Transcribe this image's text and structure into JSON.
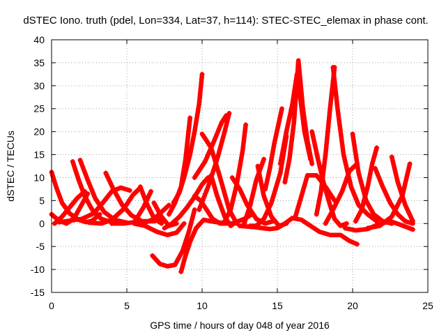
{
  "chart_data": {
    "type": "line",
    "title": "dSTEC Iono. truth (pdel, Lon=334, Lat=37, h=114): STEC-STEC_elemax in phase cont.",
    "xlabel": "GPS time / hours of day 048 of year 2016",
    "ylabel": "dSTEC  / TECUs",
    "xlim": [
      0,
      25
    ],
    "ylim": [
      -15,
      40
    ],
    "xticks": [
      "0",
      "5",
      "10",
      "15",
      "20",
      "25"
    ],
    "yticks": [
      "-15",
      "-10",
      "-5",
      "0",
      "5",
      "10",
      "15",
      "20",
      "25",
      "30",
      "35",
      "40"
    ],
    "grid": true,
    "color": "#ff0000",
    "marker": "plus",
    "series": [
      {
        "x": [
          0.0,
          0.3,
          0.7,
          1.2,
          1.8,
          2.3,
          2.7,
          3.2
        ],
        "y": [
          11.2,
          8.0,
          4.5,
          2.2,
          0.8,
          0.3,
          0.6,
          2.0
        ]
      },
      {
        "x": [
          0.0,
          0.5,
          1.0,
          1.5,
          1.9,
          2.4
        ],
        "y": [
          2.0,
          0.6,
          0.0,
          1.2,
          3.5,
          6.5
        ]
      },
      {
        "x": [
          0.2,
          0.7,
          1.2,
          1.7,
          2.2
        ],
        "y": [
          0.0,
          1.5,
          3.5,
          5.5,
          7.0
        ]
      },
      {
        "x": [
          1.4,
          1.8,
          2.2,
          2.7,
          3.3,
          4.0
        ],
        "y": [
          13.5,
          9.5,
          6.0,
          3.0,
          1.0,
          0.3
        ]
      },
      {
        "x": [
          1.9,
          2.4,
          2.9,
          3.5,
          4.2,
          5.0
        ],
        "y": [
          13.8,
          9.5,
          5.5,
          2.5,
          0.8,
          0.2
        ]
      },
      {
        "x": [
          0.5,
          1.2,
          2.0,
          2.8,
          3.4,
          4.0,
          4.6,
          5.2
        ],
        "y": [
          0.3,
          0.6,
          1.0,
          2.2,
          4.5,
          7.0,
          7.8,
          7.2
        ]
      },
      {
        "x": [
          3.6,
          4.1,
          4.7,
          5.3,
          6.0,
          6.8,
          7.4
        ],
        "y": [
          11.0,
          7.5,
          4.0,
          1.8,
          0.5,
          0.5,
          1.0
        ]
      },
      {
        "x": [
          2.5,
          3.3,
          4.0,
          4.8,
          5.4,
          5.9
        ],
        "y": [
          0.2,
          0.0,
          0.8,
          3.2,
          6.2,
          7.8
        ]
      },
      {
        "x": [
          4.0,
          4.8,
          5.5,
          6.1,
          6.6
        ],
        "y": [
          0.0,
          0.0,
          0.3,
          3.5,
          7.0
        ]
      },
      {
        "x": [
          5.9,
          6.3,
          6.8,
          7.3
        ],
        "y": [
          8.0,
          4.5,
          1.2,
          0.0
        ]
      },
      {
        "x": [
          5.5,
          6.2,
          6.8,
          7.3,
          7.8
        ],
        "y": [
          0.3,
          0.2,
          1.0,
          2.5,
          4.0
        ]
      },
      {
        "x": [
          6.8,
          7.3,
          7.8,
          8.3
        ],
        "y": [
          4.5,
          1.5,
          -0.5,
          0.0
        ]
      },
      {
        "x": [
          5.5,
          6.2,
          7.0,
          7.7,
          8.3,
          8.8
        ],
        "y": [
          0.0,
          -0.5,
          -1.8,
          -2.5,
          -2.0,
          0.0
        ]
      },
      {
        "x": [
          6.7,
          7.2,
          7.7,
          8.2,
          8.7,
          9.1,
          9.5
        ],
        "y": [
          -7.0,
          -8.8,
          -9.3,
          -9.0,
          -6.0,
          -2.0,
          3.0
        ]
      },
      {
        "x": [
          8.6,
          8.9,
          9.2,
          9.6,
          10.1,
          10.6,
          11.2,
          12.0,
          12.8,
          13.3
        ],
        "y": [
          -10.5,
          -7.0,
          -4.0,
          -1.0,
          0.8,
          0.5,
          0.2,
          0.0,
          1.0,
          2.0
        ]
      },
      {
        "x": [
          8.1,
          8.5,
          8.8,
          9.2,
          9.5,
          9.8,
          10.0
        ],
        "y": [
          4.5,
          6.8,
          10.0,
          15.0,
          20.0,
          26.0,
          32.5
        ]
      },
      {
        "x": [
          7.8,
          8.2,
          8.6,
          8.9,
          9.2
        ],
        "y": [
          2.0,
          4.5,
          8.0,
          14.0,
          23.0
        ]
      },
      {
        "x": [
          7.5,
          8.0,
          8.5,
          9.0,
          9.5,
          10.0,
          10.4
        ],
        "y": [
          -1.0,
          0.0,
          1.5,
          3.5,
          5.8,
          8.5,
          10.0
        ]
      },
      {
        "x": [
          9.5,
          9.9,
          10.3,
          10.7,
          11.2,
          11.6
        ],
        "y": [
          6.0,
          5.0,
          3.0,
          1.0,
          0.0,
          0.0
        ]
      },
      {
        "x": [
          10.0,
          10.6,
          11.2,
          11.8,
          12.3
        ],
        "y": [
          19.5,
          16.5,
          10.0,
          3.0,
          0.0
        ]
      },
      {
        "x": [
          9.5,
          10.2,
          10.8,
          11.3,
          11.6
        ],
        "y": [
          10.0,
          13.5,
          18.0,
          22.0,
          23.5
        ]
      },
      {
        "x": [
          9.8,
          10.4,
          11.0,
          11.5,
          11.8
        ],
        "y": [
          3.0,
          8.0,
          14.0,
          20.0,
          24.0
        ]
      },
      {
        "x": [
          10.6,
          11.0,
          11.5,
          11.9,
          12.2
        ],
        "y": [
          10.5,
          6.0,
          1.5,
          -0.5,
          0.2
        ]
      },
      {
        "x": [
          11.5,
          11.9,
          12.3,
          12.7,
          12.9
        ],
        "y": [
          0.5,
          3.0,
          8.5,
          16.0,
          21.5
        ]
      },
      {
        "x": [
          12.0,
          12.5,
          13.0,
          13.6,
          14.2,
          14.7
        ],
        "y": [
          10.0,
          7.5,
          4.0,
          1.0,
          0.0,
          0.5
        ]
      },
      {
        "x": [
          12.8,
          13.2,
          13.6,
          14.1
        ],
        "y": [
          0.0,
          4.0,
          9.5,
          14.0
        ]
      },
      {
        "x": [
          13.7,
          14.1,
          14.6,
          15.1,
          15.6
        ],
        "y": [
          12.5,
          6.0,
          1.5,
          -0.5,
          0.0
        ]
      },
      {
        "x": [
          13.2,
          13.6,
          14.1,
          14.6,
          15.2,
          15.6
        ],
        "y": [
          -0.5,
          -0.5,
          1.0,
          4.5,
          11.0,
          19.0
        ]
      },
      {
        "x": [
          14.2,
          14.5,
          14.8,
          15.1,
          15.3
        ],
        "y": [
          7.5,
          12.0,
          17.5,
          22.0,
          25.0
        ]
      },
      {
        "x": [
          12.5,
          13.5,
          14.5,
          15.0,
          15.5,
          16.0,
          16.6,
          17.2,
          17.8,
          18.5,
          19.2,
          19.8,
          20.3
        ],
        "y": [
          -0.5,
          -0.8,
          -1.2,
          -1.0,
          0.0,
          1.2,
          0.8,
          -0.5,
          -1.8,
          -2.5,
          -2.5,
          -3.8,
          -4.5
        ]
      },
      {
        "x": [
          15.5,
          15.8,
          16.1,
          16.4,
          16.7,
          17.0,
          17.3
        ],
        "y": [
          9.0,
          14.0,
          22.0,
          35.5,
          25.0,
          18.0,
          13.0
        ]
      },
      {
        "x": [
          15.2,
          15.6,
          16.0,
          16.3,
          16.5,
          16.8,
          17.2
        ],
        "y": [
          13.0,
          20.0,
          26.0,
          32.5,
          28.0,
          20.0,
          14.0
        ]
      },
      {
        "x": [
          16.2,
          16.6,
          17.0,
          17.6,
          18.2,
          18.8
        ],
        "y": [
          1.5,
          6.0,
          10.5,
          10.5,
          8.0,
          5.0
        ]
      },
      {
        "x": [
          17.3,
          17.7,
          18.1,
          18.5,
          18.8,
          19.2,
          19.6
        ],
        "y": [
          20.0,
          14.0,
          8.5,
          4.0,
          1.0,
          -0.5,
          0.0
        ]
      },
      {
        "x": [
          17.6,
          17.9,
          18.2,
          18.5,
          18.8
        ],
        "y": [
          2.0,
          7.0,
          15.0,
          25.0,
          34.0
        ]
      },
      {
        "x": [
          18.7,
          19.0,
          19.4,
          19.9,
          20.4,
          21.0,
          21.6
        ],
        "y": [
          34.0,
          25.0,
          15.0,
          8.0,
          4.0,
          2.0,
          0.5
        ]
      },
      {
        "x": [
          18.2,
          18.7,
          19.3,
          19.8,
          20.3
        ],
        "y": [
          0.0,
          3.0,
          7.0,
          11.5,
          13.0
        ]
      },
      {
        "x": [
          20.0,
          20.4,
          20.9,
          21.4,
          22.0,
          22.6
        ],
        "y": [
          19.5,
          11.0,
          5.0,
          2.0,
          0.5,
          0.0
        ]
      },
      {
        "x": [
          20.2,
          20.6,
          21.0,
          21.3,
          21.6
        ],
        "y": [
          0.5,
          3.0,
          8.0,
          13.0,
          16.5
        ]
      },
      {
        "x": [
          21.5,
          22.0,
          22.5,
          23.0,
          23.5,
          24.0
        ],
        "y": [
          12.0,
          8.0,
          4.5,
          2.0,
          0.5,
          0.0
        ]
      },
      {
        "x": [
          22.6,
          23.0,
          23.5,
          24.0
        ],
        "y": [
          14.5,
          9.0,
          4.0,
          0.5
        ]
      },
      {
        "x": [
          21.0,
          21.8,
          22.6,
          23.3,
          23.8
        ],
        "y": [
          -1.0,
          -0.5,
          1.5,
          6.0,
          13.0
        ]
      },
      {
        "x": [
          19.5,
          20.2,
          21.0,
          21.7,
          22.5,
          23.2,
          24.0
        ],
        "y": [
          -1.0,
          -1.5,
          -1.2,
          -0.2,
          0.5,
          -0.3,
          -1.3
        ]
      }
    ]
  }
}
